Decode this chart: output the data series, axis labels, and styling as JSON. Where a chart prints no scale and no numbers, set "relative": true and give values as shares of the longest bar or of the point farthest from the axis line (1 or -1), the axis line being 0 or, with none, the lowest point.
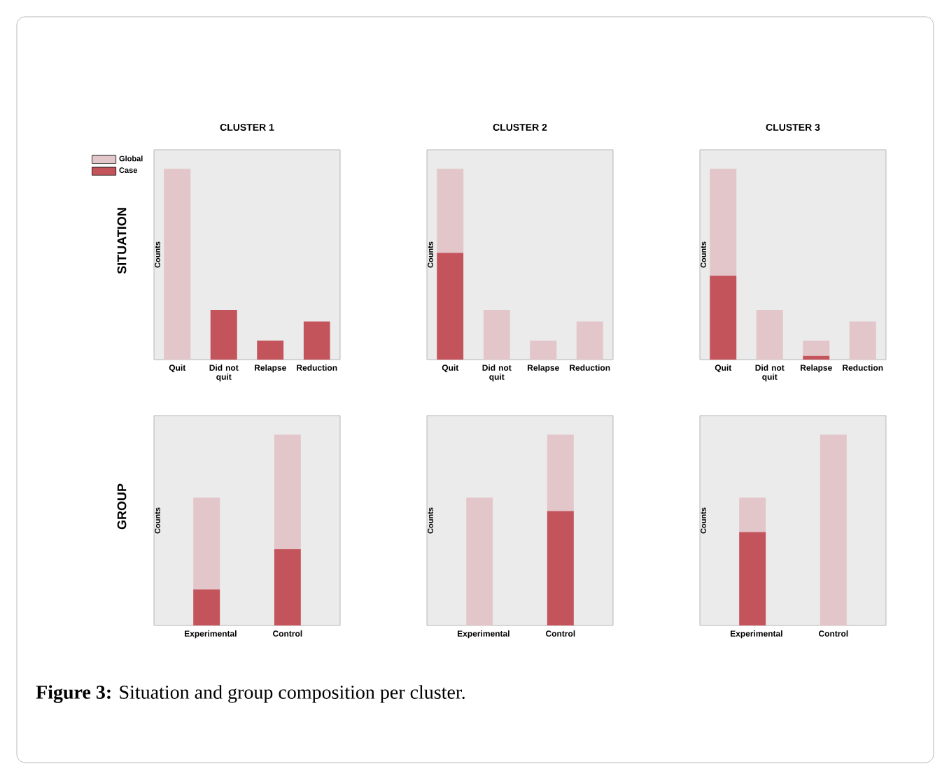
{
  "chart_data": [
    {
      "type": "bar",
      "relative": true,
      "stacked": true,
      "title": "CLUSTER 1",
      "ylabel": "Counts",
      "legend": "top left",
      "categories": [
        "Quit",
        "Did not quit",
        "Relapse",
        "Reduction"
      ],
      "annotations": [
        "SITUATION",
        "**Figure 3:** Situation and group composition per cluster."
      ],
      "series": [
        {
          "name": "Case",
          "color": "#c4545c",
          "values": [
            null,
            0.26,
            0.1,
            0.2
          ]
        },
        {
          "name": "Global",
          "color": "#e3c6ca",
          "values": [
            1,
            null,
            null,
            null
          ]
        }
      ]
    },
    {
      "type": "bar",
      "relative": true,
      "stacked": true,
      "title": "CLUSTER 2",
      "ylabel": "Counts",
      "categories": [
        "Quit",
        "Did not quit",
        "Relapse",
        "Reduction"
      ],
      "series": [
        {
          "color": "#c4545c",
          "values": [
            0.56,
            null,
            null,
            null
          ]
        },
        {
          "color": "#e3c6ca",
          "values": [
            0.44,
            0.26,
            0.1,
            0.2
          ]
        }
      ]
    },
    {
      "type": "bar",
      "relative": true,
      "stacked": true,
      "title": "CLUSTER 3",
      "ylabel": "Counts",
      "categories": [
        "Quit",
        "Did not quit",
        "Relapse",
        "Reduction"
      ],
      "series": [
        {
          "color": "#c4545c",
          "values": [
            0.44,
            null,
            0.02,
            null
          ]
        },
        {
          "color": "#e3c6ca",
          "values": [
            0.56,
            0.26,
            0.08,
            0.2
          ]
        }
      ]
    },
    {
      "type": "bar",
      "relative": true,
      "stacked": true,
      "ylabel": "Counts",
      "categories": [
        "Experimental",
        "Control"
      ],
      "annotations": [
        "GROUP"
      ],
      "series": [
        {
          "color": "#c4545c",
          "values": [
            0.19,
            0.4
          ]
        },
        {
          "color": "#e3c6ca",
          "values": [
            0.48,
            0.6
          ]
        }
      ]
    },
    {
      "type": "bar",
      "relative": true,
      "stacked": true,
      "ylabel": "Counts",
      "categories": [
        "Experimental",
        "Control"
      ],
      "series": [
        {
          "color": "#c4545c",
          "values": [
            null,
            0.6
          ]
        },
        {
          "color": "#e3c6ca",
          "values": [
            0.67,
            0.4
          ]
        }
      ]
    },
    {
      "type": "bar",
      "relative": true,
      "stacked": true,
      "ylabel": "Counts",
      "categories": [
        "Experimental",
        "Control"
      ],
      "series": [
        {
          "color": "#c4545c",
          "values": [
            0.49,
            null
          ]
        },
        {
          "color": "#e3c6ca",
          "values": [
            0.18,
            1
          ]
        }
      ]
    }
  ]
}
